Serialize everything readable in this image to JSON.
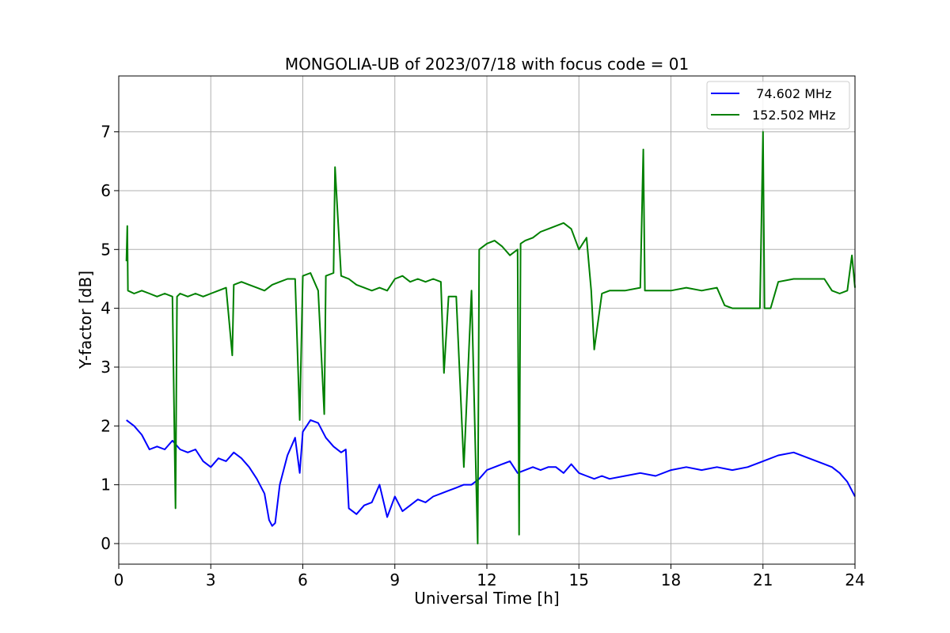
{
  "chart_data": {
    "type": "line",
    "title": "MONGOLIA-UB of 2023/07/18 with focus code = 01",
    "xlabel": "Universal Time [h]",
    "ylabel": "Y-factor [dB]",
    "xlim": [
      0,
      24
    ],
    "ylim": [
      -0.35,
      7.95
    ],
    "x_ticks": [
      0,
      3,
      6,
      9,
      12,
      15,
      18,
      21,
      24
    ],
    "y_ticks": [
      0,
      1,
      2,
      3,
      4,
      5,
      6,
      7
    ],
    "grid": true,
    "legend_position": "top-right",
    "series": [
      {
        "name": "  74.602 MHz",
        "color": "#0000ff",
        "x": [
          0.25,
          0.5,
          0.75,
          1.0,
          1.25,
          1.5,
          1.75,
          2.0,
          2.25,
          2.5,
          2.75,
          3.0,
          3.25,
          3.5,
          3.75,
          4.0,
          4.25,
          4.5,
          4.75,
          4.9,
          5.0,
          5.1,
          5.25,
          5.5,
          5.75,
          5.9,
          6.0,
          6.25,
          6.5,
          6.75,
          7.0,
          7.25,
          7.4,
          7.5,
          7.75,
          8.0,
          8.25,
          8.5,
          8.75,
          9.0,
          9.25,
          9.5,
          9.75,
          10.0,
          10.25,
          10.5,
          10.75,
          11.0,
          11.25,
          11.5,
          11.75,
          12.0,
          12.25,
          12.5,
          12.75,
          13.0,
          13.25,
          13.5,
          13.75,
          14.0,
          14.25,
          14.5,
          14.75,
          15.0,
          15.25,
          15.5,
          15.75,
          16.0,
          16.5,
          17.0,
          17.5,
          18.0,
          18.5,
          19.0,
          19.5,
          20.0,
          20.5,
          21.0,
          21.5,
          22.0,
          22.5,
          23.0,
          23.25,
          23.5,
          23.75,
          24.0
        ],
        "y": [
          2.1,
          2.0,
          1.85,
          1.6,
          1.65,
          1.6,
          1.75,
          1.6,
          1.55,
          1.6,
          1.4,
          1.3,
          1.45,
          1.4,
          1.55,
          1.45,
          1.3,
          1.1,
          0.85,
          0.4,
          0.3,
          0.35,
          1.0,
          1.5,
          1.8,
          1.2,
          1.9,
          2.1,
          2.05,
          1.8,
          1.65,
          1.55,
          1.6,
          0.6,
          0.5,
          0.65,
          0.7,
          1.0,
          0.45,
          0.8,
          0.55,
          0.65,
          0.75,
          0.7,
          0.8,
          0.85,
          0.9,
          0.95,
          1.0,
          1.0,
          1.1,
          1.25,
          1.3,
          1.35,
          1.4,
          1.2,
          1.25,
          1.3,
          1.25,
          1.3,
          1.3,
          1.2,
          1.35,
          1.2,
          1.15,
          1.1,
          1.15,
          1.1,
          1.15,
          1.2,
          1.15,
          1.25,
          1.3,
          1.25,
          1.3,
          1.25,
          1.3,
          1.4,
          1.5,
          1.55,
          1.45,
          1.35,
          1.3,
          1.2,
          1.05,
          0.8
        ]
      },
      {
        "name": "152.502 MHz",
        "color": "#008000",
        "x": [
          0.25,
          0.28,
          0.3,
          0.5,
          0.75,
          1.0,
          1.25,
          1.5,
          1.75,
          1.85,
          1.9,
          2.0,
          2.25,
          2.5,
          2.75,
          3.0,
          3.25,
          3.5,
          3.7,
          3.75,
          4.0,
          4.25,
          4.5,
          4.75,
          5.0,
          5.25,
          5.5,
          5.75,
          5.9,
          6.0,
          6.25,
          6.5,
          6.7,
          6.75,
          7.0,
          7.05,
          7.25,
          7.5,
          7.75,
          8.0,
          8.25,
          8.5,
          8.75,
          9.0,
          9.25,
          9.5,
          9.75,
          10.0,
          10.25,
          10.5,
          10.6,
          10.75,
          11.0,
          11.25,
          11.5,
          11.7,
          11.75,
          12.0,
          12.25,
          12.5,
          12.75,
          13.0,
          13.05,
          13.1,
          13.25,
          13.5,
          13.75,
          14.0,
          14.25,
          14.5,
          14.75,
          15.0,
          15.25,
          15.4,
          15.5,
          15.75,
          16.0,
          16.5,
          17.0,
          17.1,
          17.15,
          17.5,
          18.0,
          18.5,
          19.0,
          19.5,
          19.75,
          20.0,
          20.5,
          20.9,
          21.0,
          21.05,
          21.25,
          21.5,
          22.0,
          22.5,
          23.0,
          23.25,
          23.5,
          23.75,
          23.9,
          24.0
        ],
        "y": [
          4.8,
          5.4,
          4.3,
          4.25,
          4.3,
          4.25,
          4.2,
          4.25,
          4.2,
          0.6,
          4.2,
          4.25,
          4.2,
          4.25,
          4.2,
          4.25,
          4.3,
          4.35,
          3.2,
          4.4,
          4.45,
          4.4,
          4.35,
          4.3,
          4.4,
          4.45,
          4.5,
          4.5,
          2.1,
          4.55,
          4.6,
          4.3,
          2.2,
          4.55,
          4.6,
          6.4,
          4.55,
          4.5,
          4.4,
          4.35,
          4.3,
          4.35,
          4.3,
          4.5,
          4.55,
          4.45,
          4.5,
          4.45,
          4.5,
          4.45,
          2.9,
          4.2,
          4.2,
          1.3,
          4.3,
          0.0,
          5.0,
          5.1,
          5.15,
          5.05,
          4.9,
          5.0,
          0.15,
          5.1,
          5.15,
          5.2,
          5.3,
          5.35,
          5.4,
          5.45,
          5.35,
          5.0,
          5.2,
          4.3,
          3.3,
          4.25,
          4.3,
          4.3,
          4.35,
          6.7,
          4.3,
          4.3,
          4.3,
          4.35,
          4.3,
          4.35,
          4.05,
          4.0,
          4.0,
          4.0,
          7.0,
          4.0,
          4.0,
          4.45,
          4.5,
          4.5,
          4.5,
          4.3,
          4.25,
          4.3,
          4.9,
          4.35
        ]
      }
    ]
  }
}
